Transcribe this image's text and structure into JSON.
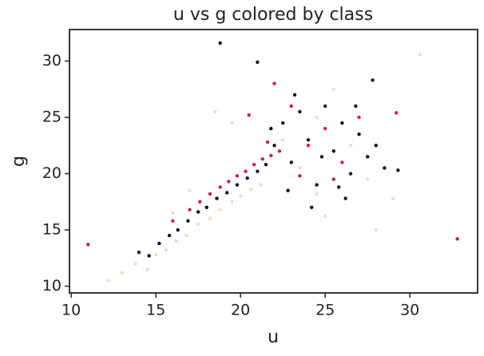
{
  "chart_data": {
    "type": "scatter",
    "title": "u vs g colored by class",
    "x_label": "u",
    "y_label": "g",
    "xlim": [
      9.9,
      34
    ],
    "ylim": [
      9.4,
      32.8
    ],
    "xticks": [
      10,
      15,
      20,
      25,
      30
    ],
    "yticks": [
      10,
      15,
      20,
      25,
      30
    ],
    "grid": false,
    "series": [
      {
        "color": "#f7d9c4",
        "x": [
          12.2,
          30.6,
          13.0,
          13.8,
          14.5,
          15.0,
          15.6,
          16.2,
          16.8,
          17.5,
          18.2,
          18.8,
          19.5,
          20.0,
          20.6,
          21.2,
          18.5,
          19.5,
          22.5,
          23.5,
          24.5,
          25.5,
          26.5,
          27.5,
          29.0,
          25.0,
          24.5,
          28.0,
          17.0,
          16.0
        ],
        "values": [
          10.5,
          30.6,
          11.2,
          12.0,
          11.5,
          12.8,
          13.2,
          14.0,
          14.5,
          15.5,
          16.0,
          16.8,
          17.5,
          18.0,
          18.6,
          19.0,
          25.5,
          24.5,
          23.0,
          20.5,
          25.0,
          27.5,
          22.5,
          19.5,
          17.8,
          16.2,
          18.2,
          15.0,
          18.5,
          16.5
        ]
      },
      {
        "color": "#cb1b4f",
        "x": [
          11.0,
          32.8,
          29.2,
          16.0,
          17.0,
          17.6,
          18.2,
          18.8,
          19.3,
          19.8,
          20.3,
          20.8,
          21.3,
          21.8,
          22.3,
          22.0,
          23.0,
          24.0,
          25.0,
          26.0,
          27.0,
          20.5,
          23.5,
          25.5,
          21.6
        ],
        "values": [
          13.7,
          14.2,
          25.4,
          15.8,
          16.8,
          17.5,
          18.2,
          18.8,
          19.3,
          19.8,
          20.2,
          20.8,
          21.3,
          21.6,
          22.0,
          28.0,
          26.0,
          22.5,
          24.0,
          21.0,
          25.0,
          25.2,
          19.8,
          19.5,
          22.8
        ]
      },
      {
        "color": "#0b0a24",
        "x": [
          18.8,
          21.0,
          14.0,
          14.6,
          15.2,
          15.8,
          16.3,
          16.9,
          17.5,
          18.0,
          18.6,
          19.2,
          19.8,
          20.4,
          21.0,
          21.5,
          22.0,
          22.5,
          23.0,
          23.5,
          24.0,
          24.5,
          25.0,
          25.5,
          26.0,
          26.5,
          27.0,
          27.5,
          28.0,
          28.5,
          29.3,
          22.8,
          24.2,
          26.2,
          27.8,
          23.2,
          25.8,
          21.8,
          24.8,
          26.8
        ],
        "values": [
          31.6,
          29.9,
          13.0,
          12.7,
          13.8,
          14.5,
          15.0,
          15.8,
          16.6,
          17.0,
          17.8,
          18.3,
          19.0,
          19.6,
          20.2,
          20.8,
          22.5,
          24.5,
          21.0,
          25.5,
          23.0,
          19.0,
          26.0,
          22.0,
          24.5,
          20.0,
          23.5,
          21.5,
          22.5,
          20.5,
          20.3,
          18.5,
          17.0,
          17.8,
          28.3,
          27.0,
          18.8,
          24.0,
          21.5,
          26.0
        ]
      }
    ]
  }
}
